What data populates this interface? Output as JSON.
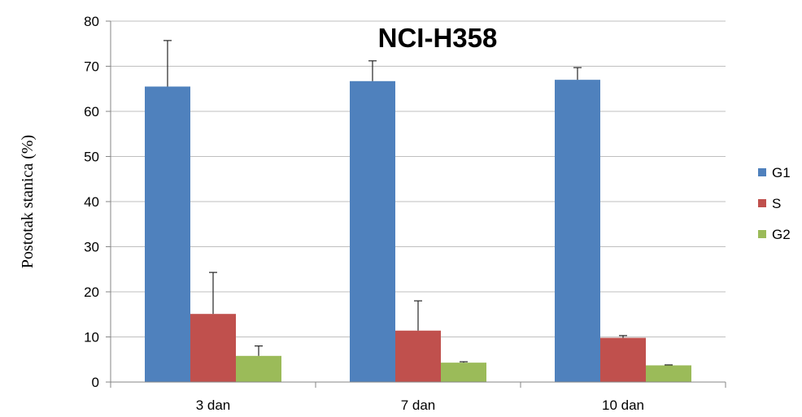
{
  "chart_data": {
    "type": "bar",
    "title": "NCI-H358",
    "xlabel": "",
    "ylabel": "Postotak stanica (%)",
    "categories": [
      "3 dan",
      "7 dan",
      "10 dan"
    ],
    "ylim": [
      0,
      80
    ],
    "yticks": [
      0,
      10,
      20,
      30,
      40,
      50,
      60,
      70,
      80
    ],
    "grid": true,
    "legend_position": "right",
    "series": [
      {
        "name": "G1",
        "color": "#4f81bd",
        "values": [
          65.5,
          66.7,
          67.0
        ],
        "errors": [
          10.2,
          4.5,
          2.7
        ]
      },
      {
        "name": "S",
        "color": "#c0504d",
        "values": [
          15.1,
          11.4,
          9.8
        ],
        "errors": [
          9.2,
          6.6,
          0.5
        ]
      },
      {
        "name": "G2",
        "color": "#9bbb59",
        "values": [
          5.8,
          4.3,
          3.7
        ],
        "errors": [
          2.2,
          0.2,
          0.1
        ]
      }
    ]
  }
}
